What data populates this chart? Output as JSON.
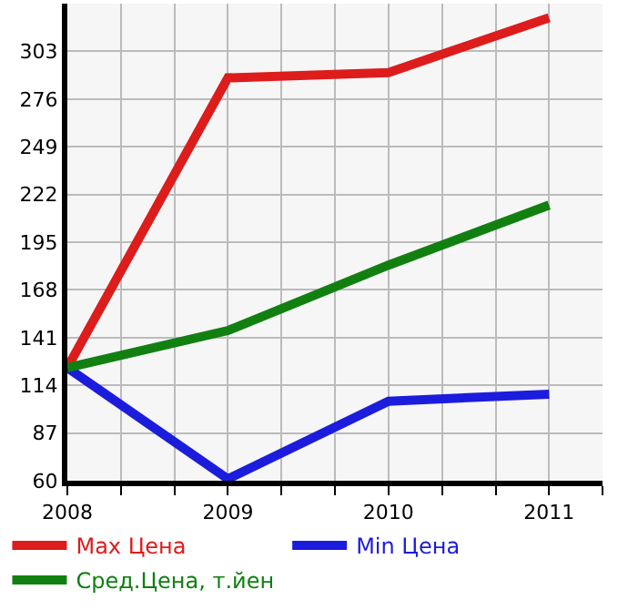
{
  "chart_data": {
    "type": "line",
    "x": [
      2008,
      2009,
      2010,
      2011
    ],
    "series": [
      {
        "name": "Max Цена",
        "color": "#dd1c1c",
        "values": [
          124,
          288,
          291,
          322
        ]
      },
      {
        "name": "Min Цена",
        "color": "#1c1cdd",
        "values": [
          124,
          61,
          105,
          109
        ]
      },
      {
        "name": "Сред.Цена, т.йен",
        "color": "#118011",
        "values": [
          124,
          145,
          182,
          216
        ]
      }
    ],
    "xlim": [
      2008,
      2011.333
    ],
    "xticks": [
      2008,
      {
        "value": 2008.333,
        "label": null
      },
      {
        "value": 2008.667,
        "label": null
      },
      2009,
      {
        "value": 2009.333,
        "label": null
      },
      {
        "value": 2009.667,
        "label": null
      },
      2010,
      {
        "value": 2010.333,
        "label": null
      },
      {
        "value": 2010.667,
        "label": null
      },
      2011,
      {
        "value": 2011.333,
        "label": null
      }
    ],
    "ylim": [
      60,
      330
    ],
    "yticks": [
      60,
      87,
      114,
      141,
      168,
      195,
      222,
      249,
      276,
      303
    ],
    "grid": true,
    "legend": "bottom",
    "marker": "none",
    "line_style": "solid"
  }
}
